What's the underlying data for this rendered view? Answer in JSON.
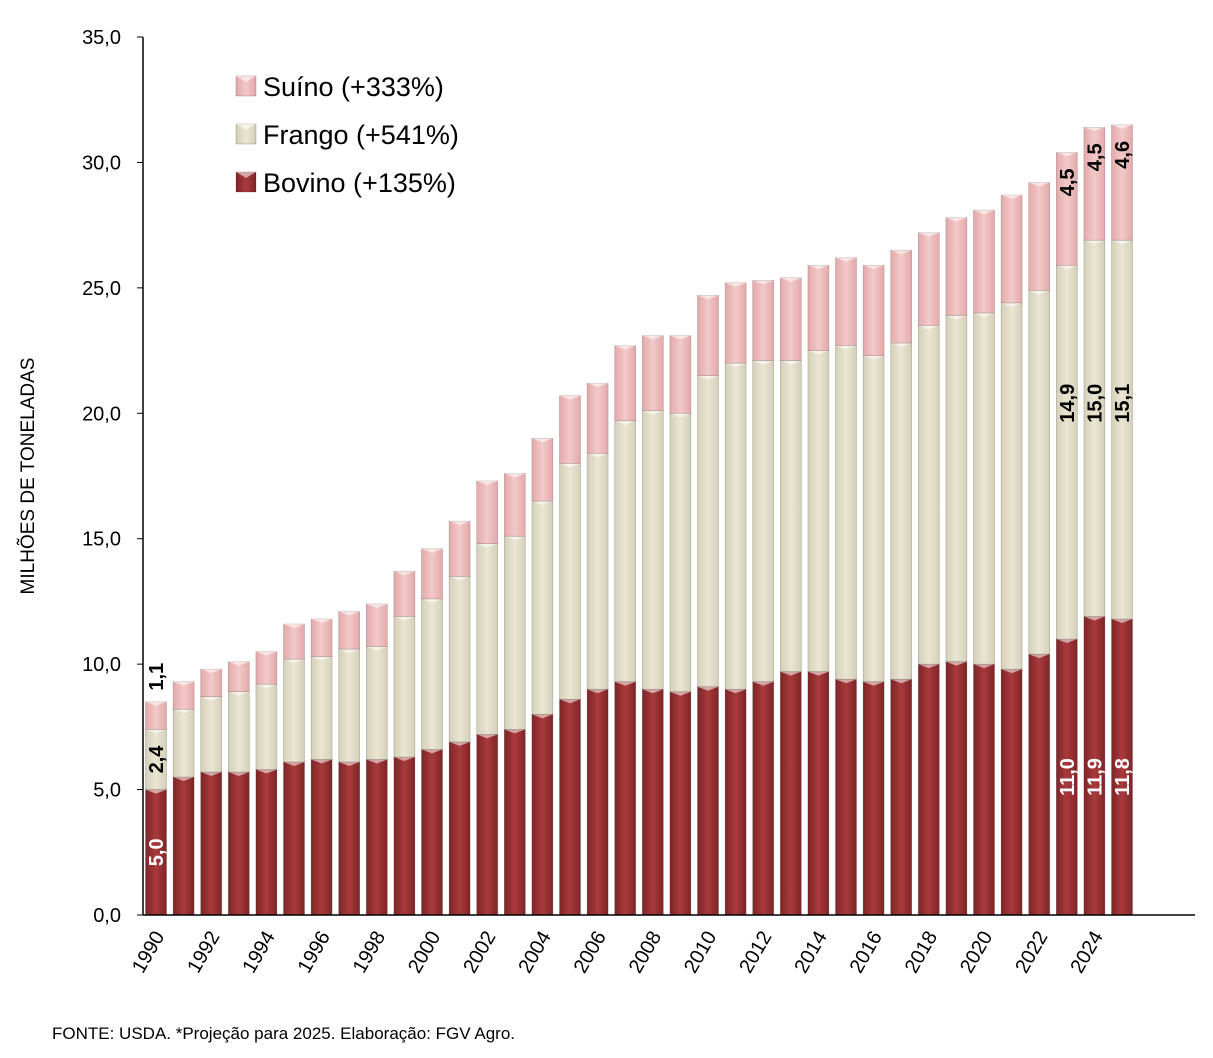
{
  "chart_data": {
    "type": "bar",
    "stacked": true,
    "title": "",
    "xlabel": "",
    "ylabel": "MILHÕES DE TONELADAS",
    "ylim": [
      0,
      35
    ],
    "yticks": [
      "0,0",
      "5,0",
      "10,0",
      "15,0",
      "20,0",
      "25,0",
      "30,0",
      "35,0"
    ],
    "categories": [
      1990,
      1991,
      1992,
      1993,
      1994,
      1995,
      1996,
      1997,
      1998,
      1999,
      2000,
      2001,
      2002,
      2003,
      2004,
      2005,
      2006,
      2007,
      2008,
      2009,
      2010,
      2011,
      2012,
      2013,
      2014,
      2015,
      2016,
      2017,
      2018,
      2019,
      2020,
      2021,
      2022,
      2023,
      2024,
      2025
    ],
    "xtick_labels": [
      "1990",
      "1992",
      "1994",
      "1996",
      "1998",
      "2000",
      "2002",
      "2004",
      "2006",
      "2008",
      "2010",
      "2012",
      "2014",
      "2016",
      "2018",
      "2020",
      "2022",
      "2024"
    ],
    "legend_position": "top-left",
    "series": [
      {
        "name": "Bovino (+135%)",
        "key": "bovino",
        "color": "#9c3436",
        "values": [
          5.0,
          5.5,
          5.7,
          5.7,
          5.8,
          6.1,
          6.2,
          6.1,
          6.2,
          6.3,
          6.6,
          6.9,
          7.2,
          7.4,
          8.0,
          8.6,
          9.0,
          9.3,
          9.0,
          8.9,
          9.1,
          9.0,
          9.3,
          9.7,
          9.7,
          9.4,
          9.3,
          9.4,
          10.0,
          10.1,
          10.0,
          9.8,
          10.4,
          11.0,
          11.9,
          11.8
        ]
      },
      {
        "name": "Frango (+541%)",
        "key": "frango",
        "color": "#e8e3cf",
        "values": [
          2.4,
          2.7,
          3.0,
          3.2,
          3.4,
          4.1,
          4.1,
          4.5,
          4.5,
          5.6,
          6.0,
          6.6,
          7.6,
          7.7,
          8.5,
          9.4,
          9.4,
          10.4,
          11.1,
          11.1,
          12.4,
          13.0,
          12.8,
          12.4,
          12.8,
          13.3,
          13.0,
          13.4,
          13.5,
          13.8,
          14.0,
          14.6,
          14.5,
          14.9,
          15.0,
          15.1
        ]
      },
      {
        "name": "Suíno (+333%)",
        "key": "suino",
        "color": "#f0c4c4",
        "values": [
          1.1,
          1.1,
          1.1,
          1.2,
          1.3,
          1.4,
          1.5,
          1.5,
          1.7,
          1.8,
          2.0,
          2.2,
          2.5,
          2.5,
          2.5,
          2.7,
          2.8,
          3.0,
          3.0,
          3.1,
          3.2,
          3.2,
          3.2,
          3.3,
          3.4,
          3.5,
          3.6,
          3.7,
          3.7,
          3.9,
          4.1,
          4.3,
          4.3,
          4.5,
          4.5,
          4.6
        ]
      }
    ],
    "data_labels": [
      {
        "index": 0,
        "series": "bovino",
        "text": "5,0"
      },
      {
        "index": 0,
        "series": "frango",
        "text": "2,4"
      },
      {
        "index": 0,
        "series": "suino",
        "text": "1,1"
      },
      {
        "index": 33,
        "series": "bovino",
        "text": "11,0"
      },
      {
        "index": 33,
        "series": "frango",
        "text": "14,9"
      },
      {
        "index": 33,
        "series": "suino",
        "text": "4,5"
      },
      {
        "index": 34,
        "series": "bovino",
        "text": "11,9"
      },
      {
        "index": 34,
        "series": "frango",
        "text": "15,0"
      },
      {
        "index": 34,
        "series": "suino",
        "text": "4,5"
      },
      {
        "index": 35,
        "series": "bovino",
        "text": "11,8"
      },
      {
        "index": 35,
        "series": "frango",
        "text": "15,1"
      },
      {
        "index": 35,
        "series": "suino",
        "text": "4,6"
      }
    ]
  },
  "source_note": "FONTE: USDA. *Projeção para 2025. Elaboração: FGV Agro."
}
